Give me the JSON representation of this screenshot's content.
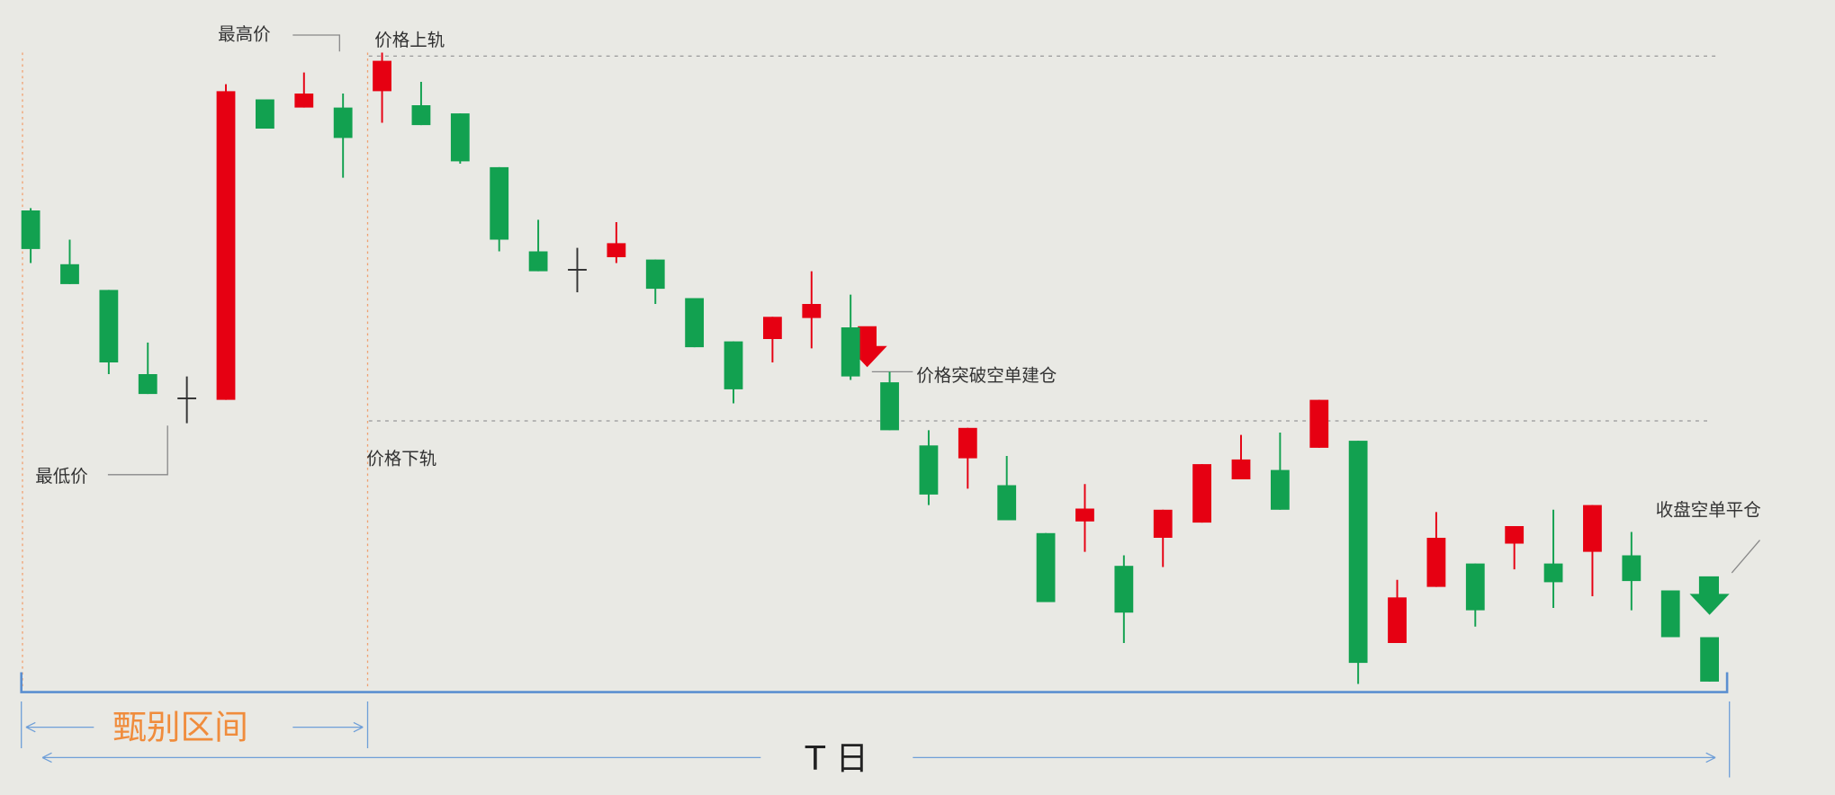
{
  "chart_data": {
    "type": "candlestick",
    "up_color": "#e60012",
    "down_color": "#12a150",
    "ylim": [
      0,
      620
    ],
    "open": [
      440,
      394,
      372,
      300,
      280,
      278,
      535,
      528,
      528,
      542,
      530,
      523,
      477,
      405,
      390,
      400,
      398,
      365,
      328,
      330,
      348,
      340,
      293,
      239,
      228,
      205,
      164,
      174,
      136,
      160,
      173,
      210,
      218,
      237,
      243,
      70,
      118,
      138,
      155,
      138,
      148,
      145,
      115,
      75
    ],
    "high": [
      442,
      415,
      372,
      327,
      298,
      548,
      535,
      558,
      540,
      575,
      550,
      523,
      477,
      432,
      408,
      430,
      398,
      365,
      328,
      349,
      388,
      368,
      302,
      252,
      254,
      230,
      164,
      206,
      145,
      184,
      223,
      248,
      250,
      278,
      243,
      124,
      182,
      138,
      170,
      184,
      188,
      165,
      115,
      75
    ],
    "low": [
      395,
      377,
      300,
      283,
      258,
      278,
      510,
      528,
      468,
      515,
      513,
      480,
      405,
      388,
      370,
      395,
      360,
      323,
      275,
      310,
      322,
      295,
      252,
      188,
      202,
      175,
      105,
      148,
      70,
      135,
      173,
      210,
      184,
      237,
      35,
      70,
      118,
      84,
      133,
      100,
      110,
      98,
      75,
      37
    ],
    "close": [
      407,
      377,
      310,
      283,
      280,
      542,
      510,
      540,
      502,
      568,
      513,
      482,
      415,
      388,
      390,
      412,
      373,
      323,
      287,
      349,
      360,
      298,
      252,
      197,
      254,
      175,
      105,
      185,
      96,
      184,
      223,
      227,
      184,
      278,
      53,
      109,
      160,
      98,
      170,
      122,
      188,
      123,
      75,
      37
    ],
    "upper_band": 572,
    "lower_band": 260,
    "annotations": {
      "highest": "最高价",
      "lowest": "最低价",
      "upper_label": "价格上轨",
      "lower_label": "价格下轨",
      "entry": "价格突破空单建仓",
      "exit": "收盘空单平仓",
      "screen_range": "甄别区间",
      "t_day": "T 日"
    }
  }
}
